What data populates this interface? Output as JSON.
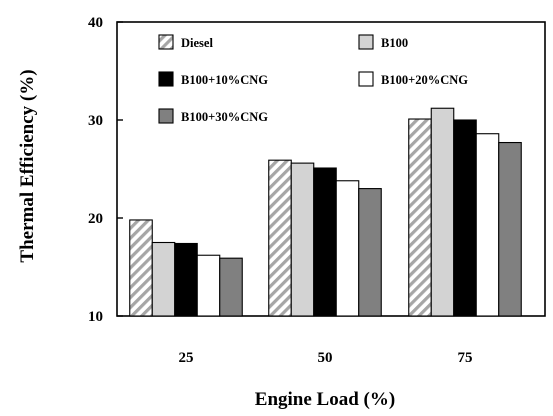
{
  "chart_data": {
    "type": "bar",
    "title": "",
    "xlabel": "Engine Load (%)",
    "ylabel": "Thermal Efficiency (%)",
    "ylim": [
      10,
      40
    ],
    "yticks": [
      10,
      20,
      30,
      40
    ],
    "categories": [
      "25",
      "50",
      "75"
    ],
    "grid": false,
    "legend_position": "top, inside plot",
    "series": [
      {
        "name": "Diesel",
        "values": [
          19.8,
          25.9,
          30.1
        ],
        "fill": "hatched",
        "color": "#b8b8b8"
      },
      {
        "name": "B100",
        "values": [
          17.5,
          25.6,
          31.2
        ],
        "fill": "solid",
        "color": "#d3d3d3"
      },
      {
        "name": "B100+10%CNG",
        "values": [
          17.4,
          25.1,
          30.0
        ],
        "fill": "solid",
        "color": "#000000"
      },
      {
        "name": "B100+20%CNG",
        "values": [
          16.2,
          23.8,
          28.6
        ],
        "fill": "solid",
        "color": "#ffffff"
      },
      {
        "name": "B100+30%CNG",
        "values": [
          15.9,
          23.0,
          27.7
        ],
        "fill": "solid",
        "color": "#808080"
      }
    ]
  }
}
